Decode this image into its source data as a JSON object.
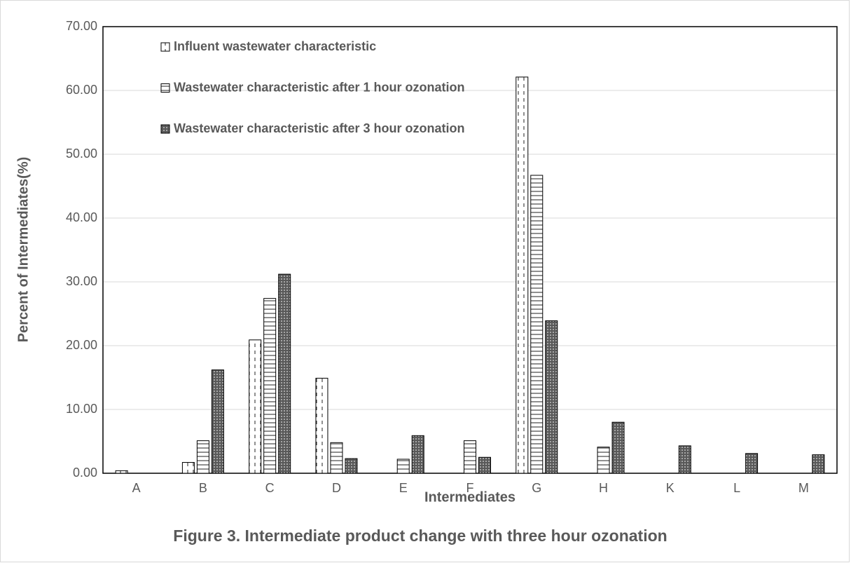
{
  "chart_data": {
    "type": "bar",
    "title": "Figure 3. Intermediate product change with three hour ozonation",
    "x_label": "Intermediates",
    "y_label": "Percent of Intermediates(%)",
    "categories": [
      "A",
      "B",
      "C",
      "D",
      "E",
      "F",
      "G",
      "H",
      "K",
      "L",
      "M"
    ],
    "series": [
      {
        "name": "Influent wastewater characteristic",
        "color": "#ffffff",
        "values": [
          0.4,
          1.7,
          20.9,
          14.9,
          0,
          0,
          62.1,
          0,
          0,
          0,
          0
        ]
      },
      {
        "name": "Wastewater characteristic after 1 hour ozonation",
        "color": "#ffffff",
        "values": [
          0,
          5.1,
          27.4,
          4.8,
          2.2,
          5.1,
          46.7,
          4.1,
          0,
          0,
          0
        ]
      },
      {
        "name": "Wastewater characteristic after 3 hour ozonation",
        "color": "#595959",
        "values": [
          0,
          16.2,
          31.2,
          2.3,
          5.9,
          2.5,
          23.9,
          8.0,
          4.3,
          3.1,
          2.9
        ]
      }
    ],
    "ylim": [
      0,
      70
    ],
    "yticks": [
      {
        "value": 0,
        "label": "0.00"
      },
      {
        "value": 10,
        "label": "10.00"
      },
      {
        "value": 20,
        "label": "20.00"
      },
      {
        "value": 30,
        "label": "30.00"
      },
      {
        "value": 40,
        "label": "40.00"
      },
      {
        "value": 50,
        "label": "50.00"
      },
      {
        "value": 60,
        "label": "60.00"
      },
      {
        "value": 70,
        "label": "70.00"
      }
    ],
    "grid": true
  }
}
